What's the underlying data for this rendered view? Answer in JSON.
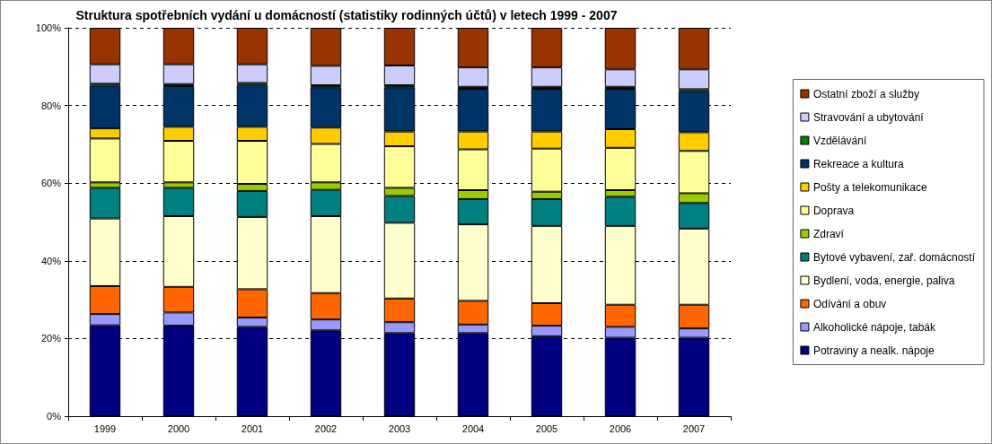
{
  "chart_data": {
    "type": "bar",
    "title": "Struktura spotřebních vydání u domácností (statistiky rodinných účtů) v letech 1999 - 2007",
    "categories": [
      "1999",
      "2000",
      "2001",
      "2002",
      "2003",
      "2004",
      "2005",
      "2006",
      "2007"
    ],
    "stacked": true,
    "grid": "y",
    "legend": "right",
    "ylim": [
      0,
      100
    ],
    "yticks": [
      {
        "value": 0,
        "label": "0%"
      },
      {
        "value": 20,
        "label": "20%"
      },
      {
        "value": 40,
        "label": "40%"
      },
      {
        "value": 60,
        "label": "60%"
      },
      {
        "value": 80,
        "label": "80%"
      },
      {
        "value": 100,
        "label": "100%"
      }
    ],
    "series": [
      {
        "name": "Potraviny a nealk. nápoje",
        "color": "#000080",
        "values": [
          23.4,
          23.3,
          23.0,
          22.1,
          21.4,
          21.4,
          20.6,
          20.2,
          20.2
        ]
      },
      {
        "name": "Alkoholické nápoje, tabák",
        "color": "#9999ff",
        "values": [
          2.9,
          3.4,
          2.4,
          2.8,
          2.8,
          2.2,
          2.7,
          2.8,
          2.4
        ]
      },
      {
        "name": "Odívání a obuv",
        "color": "#ff6600",
        "values": [
          7.2,
          6.6,
          7.3,
          6.8,
          6.1,
          6.1,
          5.8,
          5.7,
          6.1
        ]
      },
      {
        "name": "Bydlení, voda, energie, paliva",
        "color": "#ffffcc",
        "values": [
          17.4,
          18.2,
          18.6,
          19.8,
          19.5,
          19.7,
          19.9,
          20.3,
          19.6
        ]
      },
      {
        "name": "Bytové vybavení, zař. domácností",
        "color": "#008080",
        "values": [
          7.9,
          7.3,
          6.7,
          6.8,
          6.9,
          6.5,
          6.9,
          7.5,
          6.6
        ]
      },
      {
        "name": "Zdraví",
        "color": "#99cc00",
        "values": [
          1.4,
          1.4,
          1.8,
          1.9,
          2.1,
          2.3,
          1.9,
          1.7,
          2.5
        ]
      },
      {
        "name": "Doprava",
        "color": "#ffff99",
        "values": [
          11.3,
          10.7,
          11.1,
          9.9,
          10.7,
          10.5,
          11.1,
          10.9,
          10.9
        ]
      },
      {
        "name": "Pošty a telekomunikace",
        "color": "#ffcc00",
        "values": [
          2.6,
          3.6,
          3.6,
          4.2,
          3.8,
          4.6,
          4.4,
          4.8,
          4.8
        ]
      },
      {
        "name": "Rekreace a kultura",
        "color": "#003366",
        "values": [
          11.0,
          10.5,
          10.8,
          10.4,
          11.4,
          11.0,
          11.0,
          10.4,
          10.6
        ]
      },
      {
        "name": "Vzdělávání",
        "color": "#008000",
        "values": [
          0.5,
          0.5,
          0.5,
          0.5,
          0.5,
          0.5,
          0.5,
          0.5,
          0.5
        ]
      },
      {
        "name": "Stravování a ubytování",
        "color": "#ccccff",
        "values": [
          5.0,
          5.1,
          4.8,
          5.0,
          5.1,
          5.0,
          5.0,
          4.5,
          5.1
        ]
      },
      {
        "name": "Ostatní zboží a služby",
        "color": "#993300",
        "values": [
          9.4,
          9.4,
          9.4,
          9.8,
          9.7,
          10.2,
          10.2,
          10.7,
          10.7
        ]
      }
    ]
  }
}
